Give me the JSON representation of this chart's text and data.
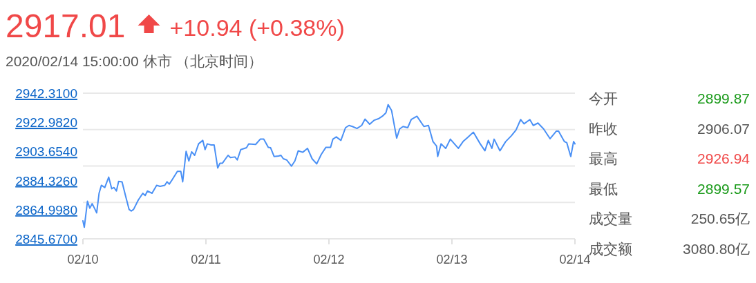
{
  "chart_data": [
    {
      "type": "line",
      "title": "2917.01",
      "subtitle": "2020/02/14 15:00:00  休市 （北京时间）",
      "annotations": [
        "+10.94 (+0.38%)"
      ],
      "xlim": [
        "2020-02-10",
        "2020-02-14"
      ],
      "xticks": [
        {
          "value": "2020-02-10",
          "label": "02/10"
        },
        {
          "value": "2020-02-11",
          "label": "02/11"
        },
        {
          "value": "2020-02-12",
          "label": "02/12"
        },
        {
          "value": "2020-02-13",
          "label": "02/13"
        },
        {
          "value": "2020-02-14",
          "label": "02/14"
        }
      ],
      "ylim": [
        2845.67,
        2942.31
      ],
      "yticks": [
        {
          "value": 2845.67,
          "label": "2845.6700"
        },
        {
          "value": 2864.998,
          "label": "2864.9980"
        },
        {
          "value": 2884.326,
          "label": "2884.3260"
        },
        {
          "value": 2903.654,
          "label": "2903.6540"
        },
        {
          "value": 2922.982,
          "label": "2922.9820"
        },
        {
          "value": 2942.31,
          "label": "2942.3100"
        }
      ],
      "ref_lines": [
        {
          "axis": "y",
          "value": 2869.83,
          "color": "#e8e8e8"
        },
        {
          "axis": "y",
          "value": 2893.99,
          "color": "#e8e8e8"
        },
        {
          "axis": "y",
          "value": 2918.15,
          "color": "#e8e8e8"
        },
        {
          "axis": "y",
          "value": 2942.31,
          "color": "#e8e8e8"
        }
      ],
      "series": [
        {
          "color": "#4a90f5",
          "x": [
            "2020-02-10T00:00",
            "2020-02-10T00:16",
            "2020-02-10T00:53",
            "2020-02-10T01:21",
            "2020-02-10T01:48",
            "2020-02-10T02:15",
            "2020-02-10T02:41",
            "2020-02-10T03:09",
            "2020-02-10T03:36",
            "2020-02-10T04:16",
            "2020-02-10T05:02",
            "2020-02-10T05:37",
            "2020-02-10T06:04",
            "2020-02-10T06:32",
            "2020-02-10T06:58",
            "2020-02-10T07:38",
            "2020-02-10T08:18",
            "2020-02-10T09:00",
            "2020-02-10T09:26",
            "2020-02-10T09:53",
            "2020-02-10T10:47",
            "2020-02-10T11:41",
            "2020-02-10T12:09",
            "2020-02-10T12:35",
            "2020-02-10T13:29",
            "2020-02-10T14:23",
            "2020-02-10T15:03",
            "2020-02-10T15:58",
            "2020-02-10T16:25",
            "2020-02-10T16:51",
            "2020-02-10T17:18",
            "2020-02-10T18:26",
            "2020-02-10T19:06",
            "2020-02-10T19:28",
            "2020-02-10T20:08",
            "2020-02-10T20:40",
            "2020-02-10T21:13",
            "2020-02-10T21:48",
            "2020-02-10T22:34",
            "2020-02-10T23:23",
            "2020-02-10T23:50",
            "2020-02-11T00:16",
            "2020-02-11T00:56",
            "2020-02-11T01:36",
            "2020-02-11T02:18",
            "2020-02-11T02:44",
            "2020-02-11T03:12",
            "2020-02-11T04:19",
            "2020-02-11T04:47",
            "2020-02-11T05:40",
            "2020-02-11T06:07",
            "2020-02-11T06:48",
            "2020-02-11T07:55",
            "2020-02-11T08:21",
            "2020-02-11T09:42",
            "2020-02-11T10:36",
            "2020-02-11T11:17",
            "2020-02-11T12:10",
            "2020-02-11T12:37",
            "2020-02-11T13:18",
            "2020-02-11T14:12",
            "2020-02-11T14:38",
            "2020-02-11T15:06",
            "2020-02-11T15:46",
            "2020-02-11T16:41",
            "2020-02-11T17:21",
            "2020-02-11T18:01",
            "2020-02-11T18:53",
            "2020-02-11T19:49",
            "2020-02-11T20:43",
            "2020-02-11T21:37",
            "2020-02-11T22:31",
            "2020-02-11T23:25",
            "2020-02-12T00:19",
            "2020-02-12T00:46",
            "2020-02-12T01:26",
            "2020-02-12T02:20",
            "2020-02-12T03:14",
            "2020-02-12T03:55",
            "2020-02-12T04:35",
            "2020-02-12T05:28",
            "2020-02-12T06:23",
            "2020-02-12T07:03",
            "2020-02-12T07:57",
            "2020-02-12T08:51",
            "2020-02-12T09:45",
            "2020-02-12T10:25",
            "2020-02-12T11:07",
            "2020-02-12T11:33",
            "2020-02-12T12:13",
            "2020-02-12T13:13",
            "2020-02-12T13:48",
            "2020-02-12T14:28",
            "2020-02-12T15:22",
            "2020-02-12T16:03",
            "2020-02-12T17:10",
            "2020-02-12T18:32",
            "2020-02-12T19:25",
            "2020-02-12T20:18",
            "2020-02-12T21:00",
            "2020-02-12T21:13",
            "2020-02-12T21:53",
            "2020-02-12T22:47",
            "2020-02-12T23:41",
            "2020-02-13T01:15",
            "2020-02-13T02:10",
            "2020-02-13T03:03",
            "2020-02-13T04:11",
            "2020-02-13T05:31",
            "2020-02-13T06:26",
            "2020-02-13T07:06",
            "2020-02-13T07:47",
            "2020-02-13T08:14",
            "2020-02-13T09:22",
            "2020-02-13T10:29",
            "2020-02-13T11:36",
            "2020-02-13T12:30",
            "2020-02-13T13:24",
            "2020-02-13T14:04",
            "2020-02-13T15:12",
            "2020-02-13T15:52",
            "2020-02-13T16:47",
            "2020-02-13T17:53",
            "2020-02-13T19:09",
            "2020-02-13T20:21",
            "2020-02-13T20:48",
            "2020-02-13T21:56",
            "2020-02-13T22:24",
            "2020-02-13T23:11",
            "2020-02-13T23:44",
            "2020-02-14T00:00"
          ],
          "values": [
            2857.6,
            2853.3,
            2870.6,
            2866.0,
            2869.0,
            2866.0,
            2862.9,
            2875.9,
            2881.2,
            2879.7,
            2886.6,
            2878.9,
            2879.7,
            2877.4,
            2883.8,
            2883.5,
            2874.4,
            2865.2,
            2864.1,
            2865.2,
            2871.3,
            2875.9,
            2874.4,
            2877.4,
            2875.9,
            2881.2,
            2880.5,
            2881.2,
            2883.5,
            2882.0,
            2884.3,
            2890.4,
            2890.4,
            2883.5,
            2903.7,
            2897.3,
            2903.4,
            2901.1,
            2908.7,
            2911.0,
            2904.9,
            2908.7,
            2908.0,
            2908.0,
            2892.7,
            2895.8,
            2895.8,
            2901.1,
            2899.6,
            2900.0,
            2898.0,
            2904.9,
            2906.1,
            2908.7,
            2908.3,
            2911.8,
            2911.8,
            2906.4,
            2906.1,
            2900.3,
            2900.6,
            2901.1,
            2898.8,
            2898.0,
            2893.9,
            2897.3,
            2904.1,
            2903.1,
            2905.7,
            2898.8,
            2895.4,
            2901.8,
            2906.4,
            2906.4,
            2911.8,
            2913.3,
            2911.0,
            2919.4,
            2920.9,
            2920.2,
            2918.9,
            2920.9,
            2925.1,
            2921.7,
            2924.4,
            2925.5,
            2927.0,
            2929.3,
            2934.7,
            2930.9,
            2912.5,
            2918.6,
            2920.2,
            2919.4,
            2924.8,
            2927.0,
            2920.2,
            2920.9,
            2910.2,
            2907.2,
            2900.3,
            2908.7,
            2905.7,
            2911.8,
            2905.7,
            2910.2,
            2912.9,
            2916.4,
            2908.7,
            2904.1,
            2911.0,
            2905.7,
            2911.8,
            2904.1,
            2910.2,
            2914.1,
            2917.9,
            2924.8,
            2922.0,
            2924.8,
            2920.9,
            2922.5,
            2918.6,
            2912.1,
            2917.1,
            2917.1,
            2910.2,
            2909.5,
            2900.3,
            2910.2,
            2908.7
          ]
        }
      ]
    },
    {
      "type": "other",
      "categories": [
        "今开",
        "昨收",
        "最高",
        "最低",
        "成交量",
        "成交额"
      ],
      "value_labels": [
        "2899.87",
        "2906.07",
        "2926.94",
        "2899.57",
        "250.65亿",
        "3080.80亿"
      ],
      "colors": [
        "#1a9a1a",
        "#555555",
        "#f04848",
        "#1a9a1a",
        "#555555",
        "#555555"
      ]
    }
  ]
}
